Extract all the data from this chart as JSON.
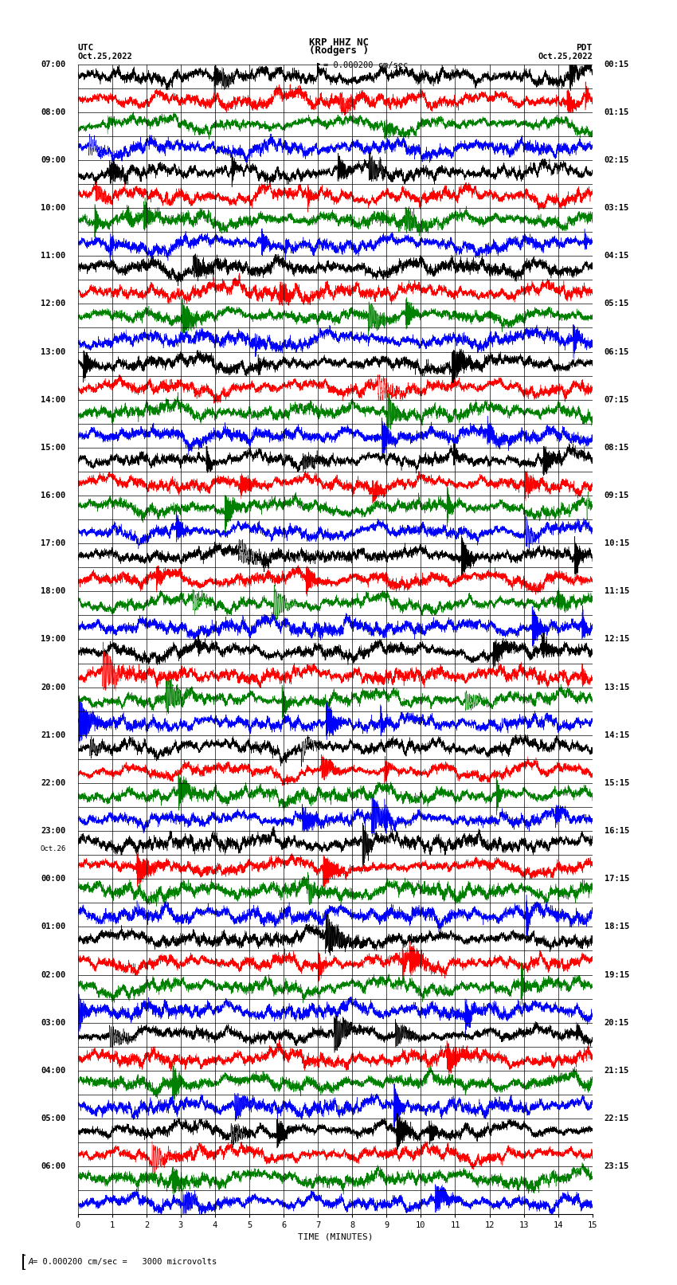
{
  "title_line1": "KRP HHZ NC",
  "title_line2": "(Rodgers )",
  "scale_bar_label": "= 0.000200 cm/sec",
  "footer_label": "= 0.000200 cm/sec =   3000 microvolts",
  "utc_label": "UTC",
  "utc_date": "Oct.25,2022",
  "pdt_label": "PDT",
  "pdt_date": "Oct.25,2022",
  "xlabel": "TIME (MINUTES)",
  "xticks": [
    0,
    1,
    2,
    3,
    4,
    5,
    6,
    7,
    8,
    9,
    10,
    11,
    12,
    13,
    14,
    15
  ],
  "time_minutes": 15,
  "left_times": [
    "07:00",
    "",
    "08:00",
    "",
    "09:00",
    "",
    "10:00",
    "",
    "11:00",
    "",
    "12:00",
    "",
    "13:00",
    "",
    "14:00",
    "",
    "15:00",
    "",
    "16:00",
    "",
    "17:00",
    "",
    "18:00",
    "",
    "19:00",
    "",
    "20:00",
    "",
    "21:00",
    "",
    "22:00",
    "",
    "23:00",
    "Oct.26",
    "00:00",
    "",
    "01:00",
    "",
    "02:00",
    "",
    "03:00",
    "",
    "04:00",
    "",
    "05:00",
    "",
    "06:00",
    ""
  ],
  "right_times": [
    "00:15",
    "",
    "01:15",
    "",
    "02:15",
    "",
    "03:15",
    "",
    "04:15",
    "",
    "05:15",
    "",
    "06:15",
    "",
    "07:15",
    "",
    "08:15",
    "",
    "09:15",
    "",
    "10:15",
    "",
    "11:15",
    "",
    "12:15",
    "",
    "13:15",
    "",
    "14:15",
    "",
    "15:15",
    "",
    "16:15",
    "",
    "17:15",
    "",
    "18:15",
    "",
    "19:15",
    "",
    "20:15",
    "",
    "21:15",
    "",
    "22:15",
    "",
    "23:15",
    ""
  ],
  "num_rows": 48,
  "seed": 42,
  "fig_width": 8.5,
  "fig_height": 16.13,
  "dpi": 100,
  "plot_bg": "white",
  "grid_color": "black",
  "grid_linewidth": 0.5
}
